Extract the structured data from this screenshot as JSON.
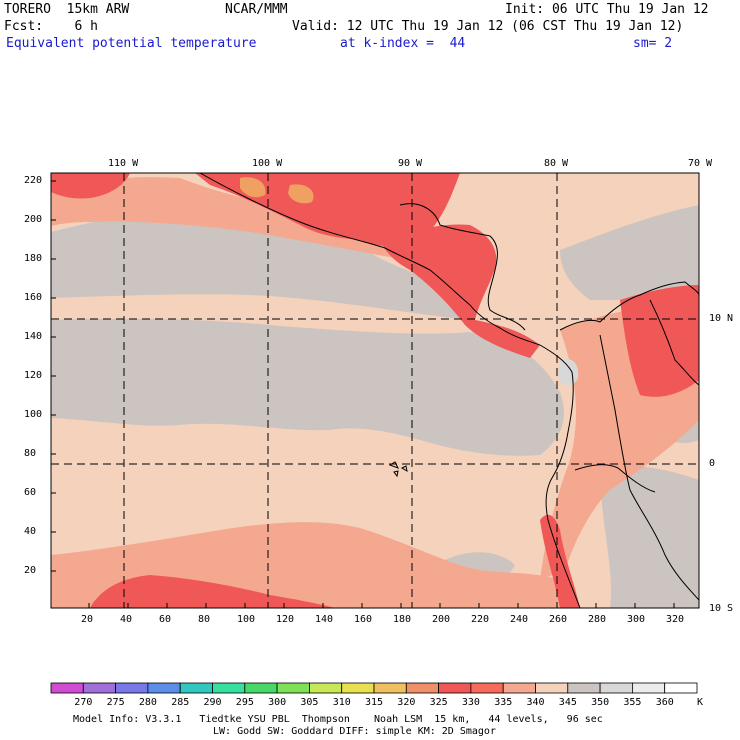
{
  "header": {
    "model": "TORERO  15km ARW",
    "org": "NCAR/MMM",
    "init": "Init: 06 UTC Thu 19 Jan 12",
    "fcst": "Fcst:    6 h",
    "valid": "Valid: 12 UTC Thu 19 Jan 12 (06 CST Thu 19 Jan 12)",
    "field": "Equivalent potential temperature",
    "level": "at k-index =  44",
    "smooth": "sm= 2"
  },
  "axes": {
    "lon_labels": [
      "110 W",
      "100 W",
      "90 W",
      "80 W",
      "70 W"
    ],
    "lat_labels": [
      "10 N",
      "0",
      "10 S"
    ],
    "y_ticks": [
      "220",
      "200",
      "180",
      "160",
      "140",
      "120",
      "100",
      "80",
      "60",
      "40",
      "20"
    ],
    "x_ticks": [
      "20",
      "40",
      "60",
      "80",
      "100",
      "120",
      "140",
      "160",
      "180",
      "200",
      "220",
      "240",
      "260",
      "280",
      "300",
      "320"
    ]
  },
  "colorbar": {
    "labels": [
      "270",
      "275",
      "280",
      "285",
      "290",
      "295",
      "300",
      "305",
      "310",
      "315",
      "320",
      "325",
      "330",
      "335",
      "340",
      "345",
      "350",
      "355",
      "360"
    ],
    "unit": "K",
    "colors": [
      "#d04cd0",
      "#a070d8",
      "#7878e8",
      "#5a8ee8",
      "#30c8c0",
      "#38e0a0",
      "#48d868",
      "#80e058",
      "#c8e858",
      "#e8e050",
      "#f0c060",
      "#f09068",
      "#f05858",
      "#f56c5c",
      "#f5a890",
      "#f5d2bc",
      "#ccc4c0",
      "#d8d8d8",
      "#ececec",
      "#ffffff"
    ]
  },
  "footer": {
    "line1": "Model Info: V3.3.1   Tiedtke YSU PBL  Thompson    Noah LSM  15 km,   44 levels,   96 sec",
    "line2": "LW: Godd SW: Goddard DIFF: simple KM: 2D Smagor"
  }
}
